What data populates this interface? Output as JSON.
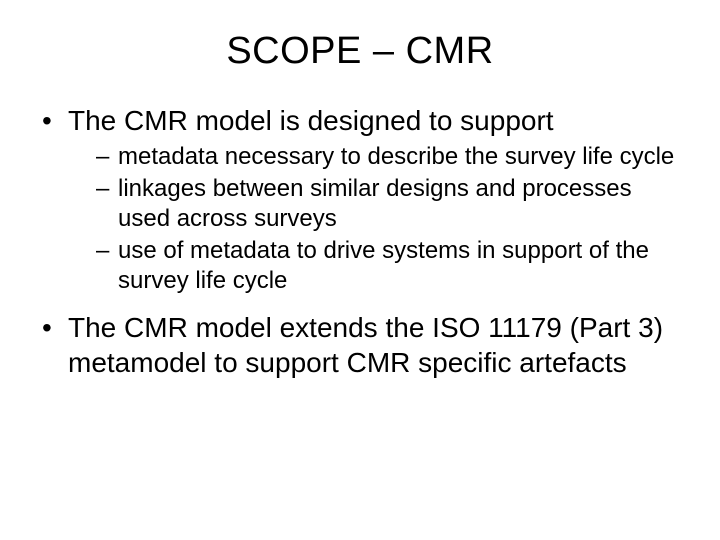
{
  "slide": {
    "title": "SCOPE – CMR",
    "title_fontsize": 38,
    "background_color": "#ffffff",
    "text_color": "#000000",
    "font_family": "Arial",
    "bullets": [
      {
        "text": "The CMR model is designed to support",
        "fontsize": 28,
        "sub": [
          {
            "text": "metadata necessary to describe the survey life cycle",
            "fontsize": 24
          },
          {
            "text": "linkages between similar designs and processes used across surveys",
            "fontsize": 24
          },
          {
            "text": "use of metadata to drive systems in support of the survey life cycle",
            "fontsize": 24
          }
        ]
      },
      {
        "text": "The CMR model extends the ISO 11179 (Part 3) metamodel to support CMR specific artefacts",
        "fontsize": 28,
        "sub": []
      }
    ]
  }
}
